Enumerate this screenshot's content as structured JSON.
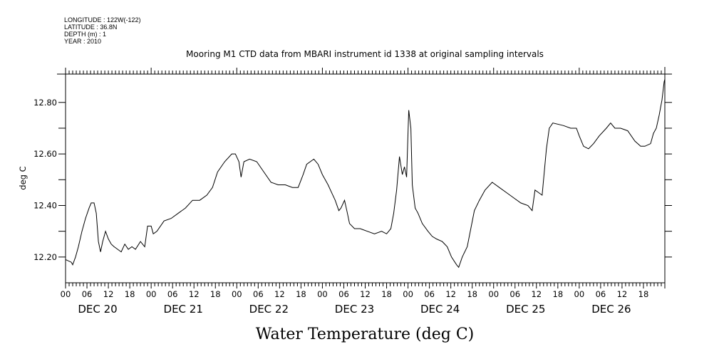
{
  "header": {
    "longitude": "LONGITUDE : 122W(-122)",
    "latitude": "LATITUDE : 36.8N",
    "depth": "DEPTH (m) : 1",
    "year": "YEAR : 2010"
  },
  "chart_data": {
    "type": "line",
    "title": "Mooring M1 CTD data from MBARI instrument id 1338 at original sampling intervals",
    "xlabel": "Water Temperature (deg C)",
    "ylabel": "deg C",
    "x_units": "hours since DEC 20 00:00, 2010",
    "xlim": [
      0,
      168
    ],
    "ylim": [
      12.1,
      12.91
    ],
    "yticks": [
      12.2,
      12.3,
      12.4,
      12.5,
      12.6,
      12.7,
      12.8
    ],
    "ytick_labels": [
      "12.20",
      "12.40",
      "12.60",
      "12.80"
    ],
    "xtick_hour_labels": [
      "00",
      "06",
      "12",
      "18",
      "00",
      "06",
      "12",
      "18",
      "00",
      "06",
      "12",
      "18",
      "00",
      "06",
      "12",
      "18",
      "00",
      "06",
      "12",
      "18",
      "00",
      "06",
      "12",
      "18",
      "00",
      "06",
      "12",
      "18"
    ],
    "day_labels": [
      "DEC 20",
      "DEC 21",
      "DEC 22",
      "DEC 23",
      "DEC 24",
      "DEC 25",
      "DEC 26"
    ],
    "grid": false,
    "line_color": "#000000",
    "series": [
      {
        "name": "Water Temperature",
        "x": [
          0,
          1.6,
          2,
          2.8,
          3.6,
          4.6,
          5.6,
          6.6,
          7.2,
          8,
          8.6,
          9.2,
          9.8,
          10.4,
          11.2,
          12,
          12.8,
          13.6,
          14.6,
          15.6,
          16.6,
          17.6,
          18.6,
          19.6,
          21,
          22.2,
          23,
          24,
          24.6,
          25.6,
          27.6,
          29.6,
          31.6,
          33.6,
          35.6,
          37.6,
          39.6,
          41.2,
          42.6,
          44.6,
          46.6,
          47.6,
          48.6,
          49.2,
          50,
          51.6,
          53.6,
          55.6,
          57.6,
          59.6,
          61.6,
          63.6,
          65.2,
          66.6,
          67.6,
          69.6,
          70.8,
          72,
          73.6,
          74.6,
          75.6,
          76.6,
          77.2,
          78.2,
          79,
          79.6,
          81,
          82.6,
          84.6,
          86.6,
          88.6,
          90,
          91.2,
          92,
          92.8,
          93.6,
          94.4,
          95,
          95.6,
          96.2,
          96.8,
          97.2,
          98,
          98.8,
          100,
          101.6,
          102.8,
          104,
          105.6,
          107,
          108.2,
          109.6,
          110.2,
          111.2,
          112.6,
          113.6,
          114.6,
          116,
          117.6,
          119.6,
          121.6,
          123.6,
          125.6,
          127.6,
          129.6,
          130.8,
          131.6,
          132.6,
          133.6,
          134.8,
          135.6,
          136.6,
          139.6,
          141.6,
          143.2,
          144,
          145.2,
          146.6,
          148,
          149.6,
          151.6,
          152.8,
          154,
          155.6,
          157.6,
          159.6,
          161.2,
          162.4,
          164,
          164.8,
          165.6,
          166.4,
          167.2,
          167.8,
          168
        ],
        "y": [
          12.19,
          12.18,
          12.17,
          12.2,
          12.24,
          12.3,
          12.35,
          12.39,
          12.41,
          12.41,
          12.37,
          12.26,
          12.22,
          12.26,
          12.3,
          12.27,
          12.25,
          12.24,
          12.23,
          12.22,
          12.25,
          12.23,
          12.24,
          12.23,
          12.26,
          12.24,
          12.32,
          12.32,
          12.29,
          12.3,
          12.34,
          12.35,
          12.37,
          12.39,
          12.42,
          12.42,
          12.44,
          12.47,
          12.53,
          12.57,
          12.6,
          12.6,
          12.57,
          12.51,
          12.57,
          12.58,
          12.57,
          12.53,
          12.49,
          12.48,
          12.48,
          12.47,
          12.47,
          12.52,
          12.56,
          12.58,
          12.56,
          12.52,
          12.48,
          12.45,
          12.42,
          12.38,
          12.39,
          12.42,
          12.37,
          12.33,
          12.31,
          12.31,
          12.3,
          12.29,
          12.3,
          12.29,
          12.31,
          12.37,
          12.46,
          12.59,
          12.52,
          12.55,
          12.51,
          12.77,
          12.7,
          12.48,
          12.39,
          12.37,
          12.33,
          12.3,
          12.28,
          12.27,
          12.26,
          12.24,
          12.2,
          12.17,
          12.16,
          12.2,
          12.24,
          12.31,
          12.38,
          12.42,
          12.46,
          12.49,
          12.47,
          12.45,
          12.43,
          12.41,
          12.4,
          12.38,
          12.46,
          12.45,
          12.44,
          12.62,
          12.7,
          12.72,
          12.71,
          12.7,
          12.7,
          12.67,
          12.63,
          12.62,
          12.64,
          12.67,
          12.7,
          12.72,
          12.7,
          12.7,
          12.69,
          12.65,
          12.63,
          12.63,
          12.64,
          12.68,
          12.7,
          12.75,
          12.81,
          12.88,
          12.89
        ]
      }
    ]
  }
}
